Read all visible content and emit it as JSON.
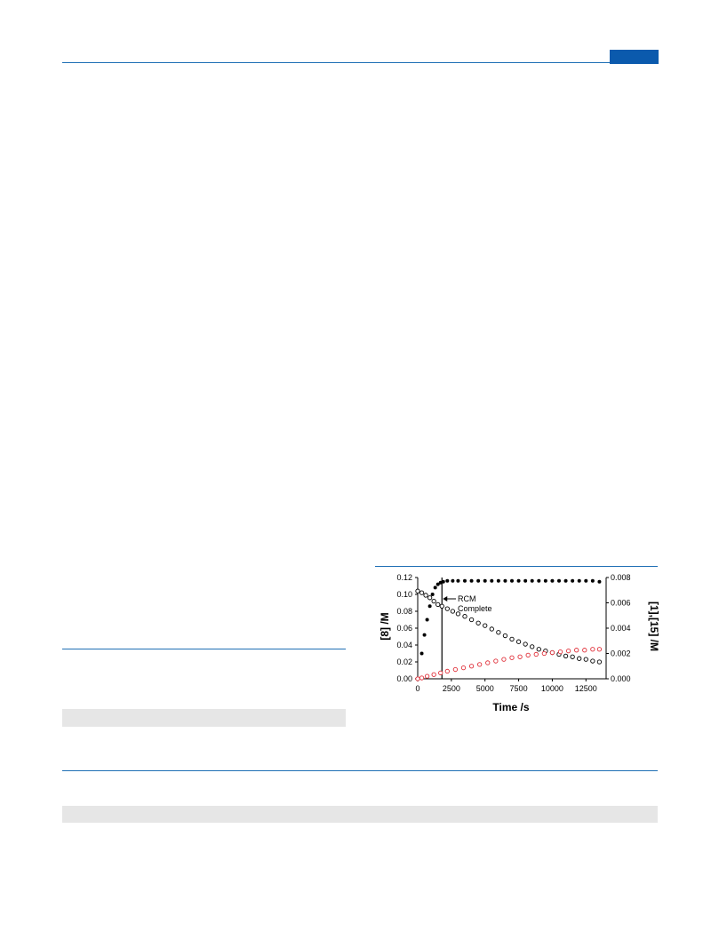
{
  "colors": {
    "accent": "#0b5aad",
    "rule": "#1f6fb5",
    "grey_bar": "#e6e6e6",
    "series_red": "#e0303a",
    "series_black": "#000000"
  },
  "chart_data": {
    "type": "scatter",
    "xlabel": "Time /s",
    "ylabel_left": "[8] /M",
    "ylabel_right": "[1],[15] /M",
    "xlim": [
      0,
      14000
    ],
    "ylim_left": [
      0,
      0.12
    ],
    "ylim_right": [
      0,
      0.008
    ],
    "x_ticks": [
      "0",
      "2500",
      "5000",
      "7500",
      "10000",
      "12500"
    ],
    "y_ticks_left": [
      "0.00",
      "0.02",
      "0.04",
      "0.06",
      "0.08",
      "0.10",
      "0.12"
    ],
    "y_ticks_right": [
      "0.000",
      "0.002",
      "0.004",
      "0.006",
      "0.008"
    ],
    "annotation": {
      "lines": [
        "RCM",
        "Complete"
      ],
      "x": 1800
    },
    "series": [
      {
        "axis": "left",
        "marker": "filled-circle",
        "color": "#000000",
        "points": [
          [
            0,
            0.0
          ],
          [
            300,
            0.03
          ],
          [
            500,
            0.052
          ],
          [
            700,
            0.07
          ],
          [
            900,
            0.086
          ],
          [
            1100,
            0.1
          ],
          [
            1300,
            0.108
          ],
          [
            1500,
            0.112
          ],
          [
            1700,
            0.114
          ],
          [
            1900,
            0.115
          ],
          [
            2200,
            0.116
          ],
          [
            2600,
            0.116
          ],
          [
            3000,
            0.116
          ],
          [
            3500,
            0.116
          ],
          [
            4000,
            0.116
          ],
          [
            4500,
            0.116
          ],
          [
            5000,
            0.116
          ],
          [
            5500,
            0.116
          ],
          [
            6000,
            0.116
          ],
          [
            6500,
            0.116
          ],
          [
            7000,
            0.116
          ],
          [
            7500,
            0.116
          ],
          [
            8000,
            0.116
          ],
          [
            8500,
            0.116
          ],
          [
            9000,
            0.116
          ],
          [
            9500,
            0.116
          ],
          [
            10000,
            0.116
          ],
          [
            10500,
            0.116
          ],
          [
            11000,
            0.116
          ],
          [
            11500,
            0.116
          ],
          [
            12000,
            0.116
          ],
          [
            12500,
            0.116
          ],
          [
            13000,
            0.116
          ],
          [
            13500,
            0.115
          ]
        ]
      },
      {
        "axis": "left",
        "marker": "open-circle",
        "color": "#000000",
        "points": [
          [
            0,
            0.104
          ],
          [
            300,
            0.102
          ],
          [
            600,
            0.099
          ],
          [
            900,
            0.096
          ],
          [
            1200,
            0.092
          ],
          [
            1500,
            0.088
          ],
          [
            1800,
            0.086
          ],
          [
            2200,
            0.083
          ],
          [
            2600,
            0.08
          ],
          [
            3000,
            0.077
          ],
          [
            3500,
            0.074
          ],
          [
            4000,
            0.07
          ],
          [
            4500,
            0.066
          ],
          [
            5000,
            0.063
          ],
          [
            5500,
            0.059
          ],
          [
            6000,
            0.055
          ],
          [
            6500,
            0.051
          ],
          [
            7000,
            0.047
          ],
          [
            7500,
            0.044
          ],
          [
            8000,
            0.041
          ],
          [
            8500,
            0.038
          ],
          [
            9000,
            0.035
          ],
          [
            9500,
            0.033
          ],
          [
            10000,
            0.031
          ],
          [
            10500,
            0.029
          ],
          [
            11000,
            0.027
          ],
          [
            11500,
            0.026
          ],
          [
            12000,
            0.024
          ],
          [
            12500,
            0.023
          ],
          [
            13000,
            0.021
          ],
          [
            13500,
            0.02
          ]
        ]
      },
      {
        "axis": "left",
        "marker": "open-circle",
        "color": "#e0303a",
        "points": [
          [
            0,
            0.0
          ],
          [
            300,
            0.001
          ],
          [
            700,
            0.003
          ],
          [
            1200,
            0.005
          ],
          [
            1700,
            0.007
          ],
          [
            2200,
            0.009
          ],
          [
            2800,
            0.011
          ],
          [
            3400,
            0.013
          ],
          [
            4000,
            0.015
          ],
          [
            4600,
            0.017
          ],
          [
            5200,
            0.019
          ],
          [
            5800,
            0.021
          ],
          [
            6400,
            0.023
          ],
          [
            7000,
            0.025
          ],
          [
            7600,
            0.026
          ],
          [
            8200,
            0.028
          ],
          [
            8800,
            0.029
          ],
          [
            9400,
            0.03
          ],
          [
            10000,
            0.031
          ],
          [
            10600,
            0.032
          ],
          [
            11200,
            0.033
          ],
          [
            11800,
            0.034
          ],
          [
            12400,
            0.034
          ],
          [
            13000,
            0.035
          ],
          [
            13500,
            0.035
          ]
        ]
      }
    ]
  }
}
